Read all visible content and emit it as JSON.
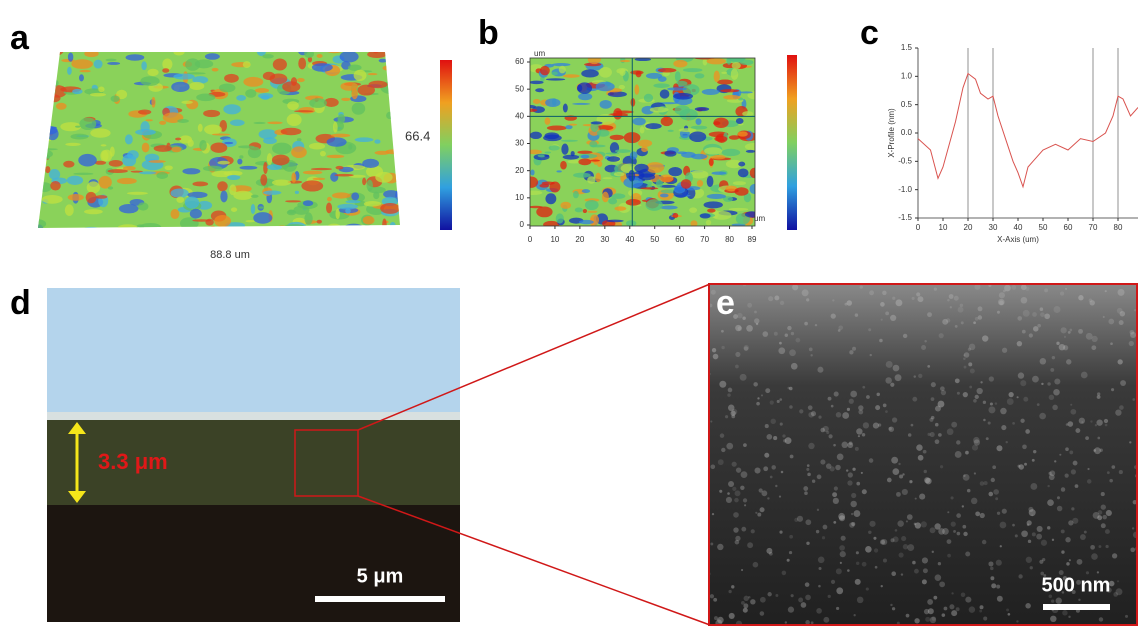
{
  "panels": {
    "a": {
      "letter": "a",
      "value_label": "66.4",
      "x_label": "88.8 um"
    },
    "b": {
      "letter": "b",
      "x_unit": "um",
      "y_unit": "um",
      "xticks": [
        0,
        10,
        20,
        30,
        40,
        50,
        60,
        70,
        80,
        89
      ],
      "yticks": [
        0,
        10,
        20,
        30,
        40,
        50,
        60
      ],
      "crosshair": [
        41,
        40
      ]
    },
    "c": {
      "letter": "c",
      "type": "line",
      "x_label": "X-Axis (um)",
      "y_label": "X-Profile (nm)",
      "x": [
        0,
        5,
        8,
        10,
        15,
        18,
        20,
        23,
        25,
        28,
        30,
        32,
        35,
        38,
        40,
        42,
        44,
        46,
        50,
        55,
        60,
        65,
        70,
        75,
        78,
        80,
        82,
        85,
        88
      ],
      "values": [
        -0.1,
        -0.3,
        -0.8,
        -0.6,
        0.2,
        0.8,
        1.05,
        0.95,
        0.7,
        0.6,
        0.65,
        0.3,
        -0.1,
        -0.5,
        -0.7,
        -0.95,
        -0.6,
        -0.5,
        -0.3,
        -0.2,
        -0.3,
        -0.1,
        -0.15,
        0.0,
        0.3,
        0.65,
        0.6,
        0.3,
        0.45
      ],
      "color": "#d9534f",
      "xlim": [
        0,
        88
      ],
      "ylim": [
        -1.5,
        1.5
      ],
      "xticks": [
        0,
        10,
        20,
        30,
        40,
        50,
        60,
        70,
        80
      ],
      "yticks": [
        {
          "value": -1.5,
          "label": "-1.5"
        },
        {
          "value": -1,
          "label": "-1.0"
        },
        {
          "value": -0.5,
          "label": "-0.5"
        },
        {
          "value": 0,
          "label": "0.0"
        },
        {
          "value": 0.5,
          "label": "0.5"
        },
        {
          "value": 1,
          "label": "1.0"
        },
        {
          "value": 1.5,
          "label": "1.5"
        }
      ],
      "markers": [
        20,
        30,
        70,
        80
      ]
    },
    "d": {
      "letter": "d",
      "thickness_label": "3.3 μm",
      "scale_label": "5 μm"
    },
    "e": {
      "letter": "e",
      "scale_label": "500 nm"
    }
  }
}
